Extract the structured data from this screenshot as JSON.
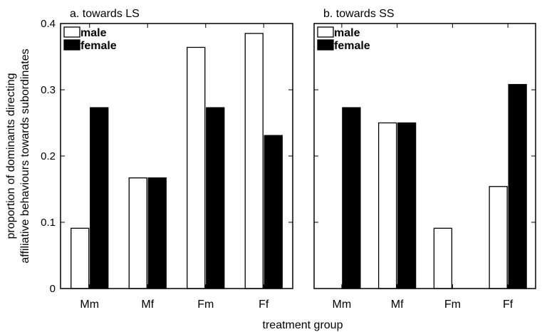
{
  "axis_labels": {
    "ylabel_line1": "proportion of dominants directing",
    "ylabel_line2": "affiliative behaviours towards subordinates",
    "xlabel": "treatment group"
  },
  "chart_data": [
    {
      "type": "bar",
      "title": "a. towards LS",
      "categories": [
        "Mm",
        "Mf",
        "Fm",
        "Ff"
      ],
      "ylim": [
        0,
        0.4
      ],
      "yticks": [
        0,
        0.1,
        0.2,
        0.3,
        0.4
      ],
      "ytick_labels": [
        "0",
        "0.1",
        "0.2",
        "0.3",
        "0.4"
      ],
      "series": [
        {
          "name": "male",
          "color": "#ffffff",
          "values": [
            0.091,
            0.167,
            0.364,
            0.385
          ]
        },
        {
          "name": "female",
          "color": "#000000",
          "values": [
            0.273,
            0.167,
            0.273,
            0.231
          ]
        }
      ],
      "legend_position": "top-left",
      "grid": false
    },
    {
      "type": "bar",
      "title": "b. towards SS",
      "categories": [
        "Mm",
        "Mf",
        "Fm",
        "Ff"
      ],
      "ylim": [
        0,
        0.4
      ],
      "yticks": [
        0,
        0.1,
        0.2,
        0.3,
        0.4
      ],
      "ytick_labels": [],
      "series": [
        {
          "name": "male",
          "color": "#ffffff",
          "values": [
            0,
            0.25,
            0.091,
            0.154
          ]
        },
        {
          "name": "female",
          "color": "#000000",
          "values": [
            0.273,
            0.25,
            0,
            0.308
          ]
        }
      ],
      "legend_position": "top-left",
      "grid": false
    }
  ]
}
